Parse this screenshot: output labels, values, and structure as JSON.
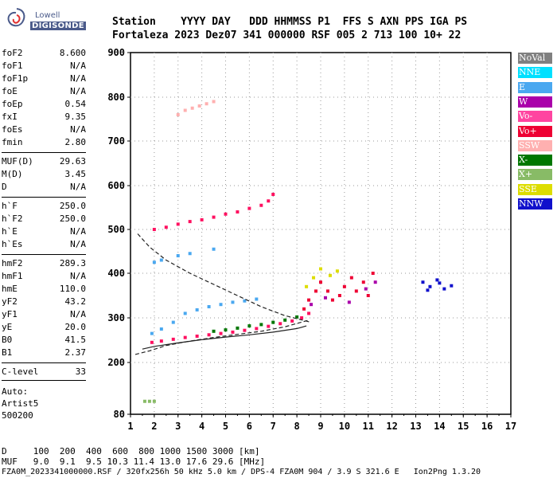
{
  "logo": {
    "line1": "Lowell",
    "line2": "DIGISONDE"
  },
  "header": {
    "line1": "Station    YYYY DAY   DDD HHMMSS P1  FFS S AXN PPS IGA PS",
    "line2": "Fortaleza 2023 Dez07 341 000000 RSF 005 2 713 100 10+ 22"
  },
  "params_group1": [
    {
      "key": "foF2",
      "value": "8.600"
    },
    {
      "key": "foF1",
      "value": "N/A"
    },
    {
      "key": "foF1p",
      "value": "N/A"
    },
    {
      "key": "foE",
      "value": "N/A"
    },
    {
      "key": "foEp",
      "value": "0.54"
    },
    {
      "key": "fxI",
      "value": "9.35"
    },
    {
      "key": "foEs",
      "value": "N/A"
    },
    {
      "key": "fmin",
      "value": "2.80"
    }
  ],
  "params_group2": [
    {
      "key": "MUF(D)",
      "value": "29.63"
    },
    {
      "key": "M(D)",
      "value": "3.45"
    },
    {
      "key": "D",
      "value": "N/A"
    }
  ],
  "params_group3": [
    {
      "key": "h`F",
      "value": "250.0"
    },
    {
      "key": "h`F2",
      "value": "250.0"
    },
    {
      "key": "h`E",
      "value": "N/A"
    },
    {
      "key": "h`Es",
      "value": "N/A"
    }
  ],
  "params_group4": [
    {
      "key": "hmF2",
      "value": "289.3"
    },
    {
      "key": "hmF1",
      "value": "N/A"
    },
    {
      "key": "hmE",
      "value": "110.0"
    },
    {
      "key": "yF2",
      "value": "43.2"
    },
    {
      "key": "yF1",
      "value": "N/A"
    },
    {
      "key": "yE",
      "value": "20.0"
    },
    {
      "key": "B0",
      "value": "41.5"
    },
    {
      "key": "B1",
      "value": "2.37"
    }
  ],
  "params_group5": [
    {
      "key": "C-level",
      "value": "33"
    }
  ],
  "auto_block": [
    "Auto:",
    "Artist5",
    "500200"
  ],
  "bottom": {
    "d_row": "D     100  200  400  600  800 1000 1500 3000 [km]",
    "muf_row": "MUF   9.0  9.1  9.5 10.3 11.4 13.0 17.6 29.6 [MHz]",
    "footer": "FZA0M_2023341000000.RSF / 320fx256h 50 kHz 5.0 km / DPS-4 FZA0M 904 / 3.9 S 321.6 E   Ion2Png 1.3.20"
  },
  "legend": [
    {
      "label": "NoVal",
      "bg": "#808080",
      "fg": "#ffffff"
    },
    {
      "label": "NNE",
      "bg": "#00e0ff",
      "fg": "#ffffff"
    },
    {
      "label": "E",
      "bg": "#4aa8f0",
      "fg": "#ffffff"
    },
    {
      "label": "W",
      "bg": "#aa00aa",
      "fg": "#ffffff"
    },
    {
      "label": "Vo-",
      "bg": "#ff44a0",
      "fg": "#ffffff"
    },
    {
      "label": "Vo+",
      "bg": "#ee0033",
      "fg": "#ffffff"
    },
    {
      "label": "SSW",
      "bg": "#ffb0b0",
      "fg": "#ffffff"
    },
    {
      "label": "X-",
      "bg": "#007700",
      "fg": "#ffffff"
    },
    {
      "label": "X+",
      "bg": "#88bb66",
      "fg": "#ffffff"
    },
    {
      "label": "SSE",
      "bg": "#dddd00",
      "fg": "#ffffff"
    },
    {
      "label": "NNW",
      "bg": "#1010cc",
      "fg": "#ffffff"
    }
  ],
  "chart_data": {
    "type": "scatter",
    "x_ticks": [
      "1",
      "2",
      "3",
      "4",
      "5",
      "6",
      "7",
      "8",
      "9",
      "10",
      "11",
      "12",
      "13",
      "14",
      "15",
      "16",
      "17"
    ],
    "y_ticks": [
      "80",
      "200",
      "300",
      "400",
      "500",
      "600",
      "700",
      "800",
      "900"
    ],
    "xlim": [
      1,
      17
    ],
    "ylim": [
      80,
      900
    ],
    "grid": true,
    "clusters": [
      {
        "name": "F-trace",
        "color": "#ff1060",
        "points": [
          [
            1.9,
            245
          ],
          [
            2.3,
            248
          ],
          [
            2.8,
            252
          ],
          [
            3.3,
            256
          ],
          [
            3.8,
            259
          ],
          [
            4.3,
            262
          ],
          [
            4.8,
            265
          ],
          [
            5.3,
            268
          ],
          [
            5.8,
            272
          ],
          [
            6.3,
            276
          ],
          [
            6.8,
            281
          ],
          [
            7.3,
            287
          ],
          [
            7.8,
            293
          ],
          [
            8.2,
            300
          ],
          [
            8.5,
            310
          ]
        ]
      },
      {
        "name": "F-trace-blue",
        "color": "#4aa8f0",
        "points": [
          [
            1.9,
            265
          ],
          [
            2.3,
            275
          ],
          [
            2.8,
            290
          ],
          [
            3.3,
            310
          ],
          [
            3.8,
            318
          ],
          [
            4.3,
            325
          ],
          [
            4.8,
            330
          ],
          [
            5.3,
            335
          ],
          [
            5.8,
            338
          ],
          [
            6.3,
            342
          ]
        ]
      },
      {
        "name": "second-hop",
        "color": "#ff1060",
        "points": [
          [
            2.0,
            500
          ],
          [
            2.5,
            505
          ],
          [
            3.0,
            512
          ],
          [
            3.5,
            518
          ],
          [
            4.0,
            522
          ],
          [
            4.5,
            528
          ],
          [
            5.0,
            535
          ],
          [
            5.5,
            540
          ],
          [
            6.0,
            548
          ],
          [
            6.5,
            555
          ],
          [
            6.8,
            565
          ],
          [
            7.0,
            580
          ]
        ]
      },
      {
        "name": "x-trace",
        "color": "#007700",
        "points": [
          [
            4.5,
            270
          ],
          [
            5.0,
            273
          ],
          [
            5.5,
            277
          ],
          [
            6.0,
            282
          ],
          [
            6.5,
            285
          ],
          [
            7.0,
            290
          ],
          [
            7.5,
            295
          ],
          [
            8.0,
            302
          ]
        ]
      },
      {
        "name": "spread-a",
        "color": "#ee0033",
        "points": [
          [
            8.3,
            320
          ],
          [
            8.5,
            340
          ],
          [
            8.8,
            360
          ],
          [
            9.0,
            380
          ],
          [
            9.3,
            360
          ],
          [
            9.5,
            340
          ],
          [
            9.8,
            350
          ],
          [
            10.0,
            370
          ],
          [
            10.3,
            390
          ],
          [
            10.5,
            360
          ],
          [
            10.8,
            380
          ],
          [
            11.0,
            350
          ],
          [
            11.2,
            400
          ]
        ]
      },
      {
        "name": "spread-b",
        "color": "#dddd00",
        "points": [
          [
            8.4,
            370
          ],
          [
            8.7,
            390
          ],
          [
            9.0,
            410
          ],
          [
            9.4,
            395
          ],
          [
            9.7,
            405
          ]
        ]
      },
      {
        "name": "nnw",
        "color": "#1010cc",
        "points": [
          [
            13.3,
            380
          ],
          [
            13.6,
            370
          ],
          [
            13.9,
            385
          ],
          [
            14.2,
            365
          ],
          [
            14.5,
            372
          ],
          [
            13.5,
            362
          ],
          [
            14.0,
            378
          ]
        ]
      },
      {
        "name": "pink-high",
        "color": "#ffb0b0",
        "points": [
          [
            3.0,
            760
          ],
          [
            3.3,
            770
          ],
          [
            3.6,
            775
          ],
          [
            3.9,
            780
          ],
          [
            4.2,
            785
          ],
          [
            4.5,
            790
          ]
        ]
      },
      {
        "name": "low-spread",
        "color": "#aa00aa",
        "points": [
          [
            8.6,
            330
          ],
          [
            9.2,
            345
          ],
          [
            10.2,
            335
          ],
          [
            10.9,
            365
          ],
          [
            11.3,
            380
          ]
        ]
      },
      {
        "name": "x-plus-low",
        "color": "#88bb66",
        "points": [
          [
            1.6,
            110
          ],
          [
            1.8,
            110
          ],
          [
            2.0,
            110
          ]
        ]
      },
      {
        "name": "blue-high",
        "color": "#4aa8f0",
        "points": [
          [
            2.0,
            425
          ],
          [
            2.3,
            430
          ],
          [
            3.0,
            440
          ],
          [
            3.5,
            445
          ],
          [
            4.5,
            455
          ]
        ]
      }
    ],
    "curves": [
      {
        "name": "dashed",
        "style": "dashed",
        "color": "#222222",
        "points": [
          [
            1.3,
            490
          ],
          [
            1.8,
            460
          ],
          [
            2.5,
            430
          ],
          [
            3.5,
            400
          ],
          [
            4.5,
            375
          ],
          [
            5.5,
            350
          ],
          [
            6.5,
            325
          ],
          [
            7.5,
            305
          ],
          [
            8.6,
            290
          ]
        ]
      },
      {
        "name": "solid-model",
        "style": "solid",
        "color": "#222222",
        "points": [
          [
            1.5,
            230
          ],
          [
            2.0,
            236
          ],
          [
            3.0,
            244
          ],
          [
            4.0,
            251
          ],
          [
            5.0,
            257
          ],
          [
            6.0,
            262
          ],
          [
            7.0,
            268
          ],
          [
            8.0,
            276
          ],
          [
            8.4,
            282
          ]
        ]
      },
      {
        "name": "dashed-low",
        "style": "dashed",
        "color": "#222222",
        "points": [
          [
            1.2,
            218
          ],
          [
            1.8,
            226
          ],
          [
            2.5,
            238
          ],
          [
            3.5,
            248
          ],
          [
            4.5,
            256
          ],
          [
            5.5,
            263
          ],
          [
            6.5,
            270
          ],
          [
            7.5,
            280
          ],
          [
            8.5,
            295
          ]
        ]
      }
    ]
  }
}
